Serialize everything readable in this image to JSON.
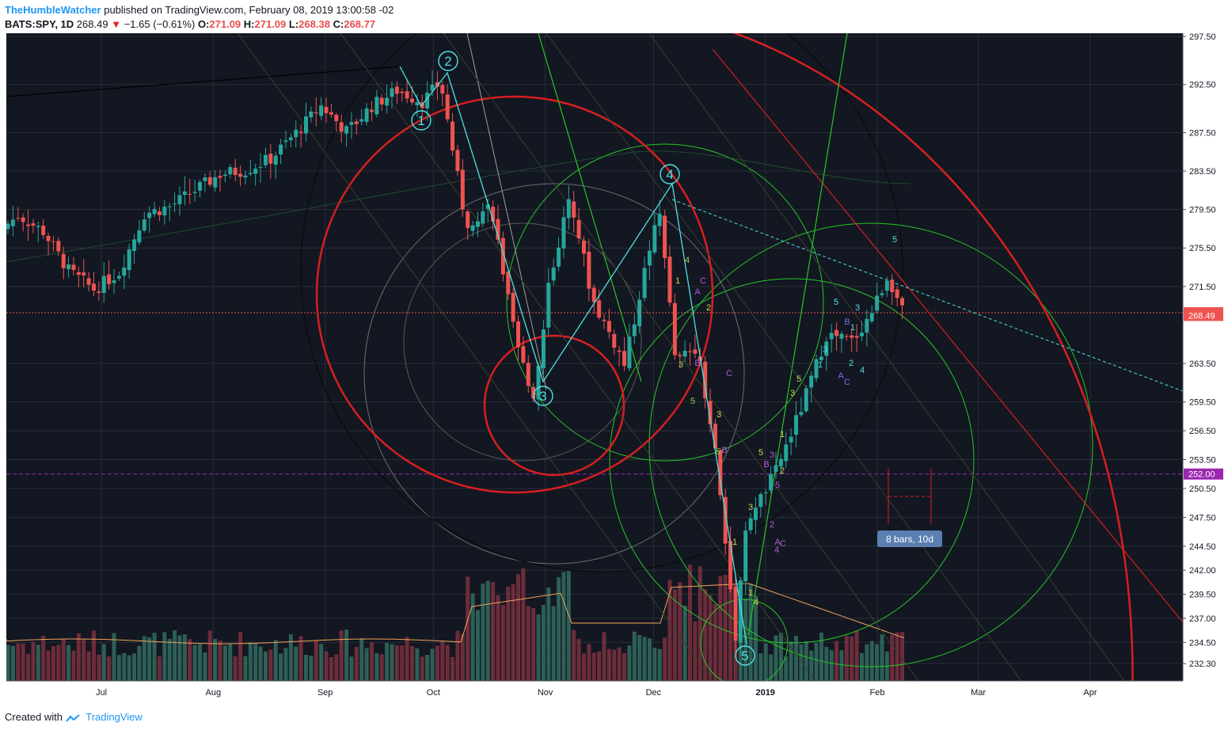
{
  "header": {
    "author": "TheHumbleWatcher",
    "published_text": "published on TradingView.com, February 08, 2019 13:00:58 -02",
    "symbol": "BATS:SPY, 1D",
    "last": "268.49",
    "change": "−1.65 (−0.61%)",
    "o_label": "O:",
    "o_value": "271.09",
    "h_label": "H:",
    "h_value": "271.09",
    "l_label": "L:",
    "l_value": "268.38",
    "c_label": "C:",
    "c_value": "268.77"
  },
  "footer": {
    "created_with": "Created with",
    "brand": "TradingView"
  },
  "colors": {
    "background": "#131722",
    "up": "#26a69a",
    "down": "#ef5350",
    "fib_red": "#d61f1f",
    "fib_green": "#27c427",
    "wave_cyan": "#4ee0e0",
    "support_purple": "#9c27b0",
    "vol_up": "#2d5f56",
    "vol_down": "#6e2c3a"
  },
  "chart_data": {
    "type": "candlestick",
    "symbol": "BATS:SPY",
    "interval": "1D",
    "ylim": [
      231.0,
      298.3
    ],
    "price_ticks": [
      "297.50",
      "292.50",
      "287.50",
      "283.50",
      "279.50",
      "275.50",
      "271.50",
      "268.77",
      "268.49",
      "263.50",
      "259.50",
      "256.50",
      "253.50",
      "252.00",
      "250.50",
      "247.50",
      "244.50",
      "242.00",
      "239.50",
      "237.00",
      "234.50",
      "232.30"
    ],
    "time_ticks": [
      "Jul",
      "Aug",
      "Sep",
      "Oct",
      "Nov",
      "Dec",
      "2019",
      "Feb",
      "Mar",
      "Apr"
    ],
    "price_labels": [
      {
        "text": "268.77",
        "price": 268.77,
        "color": "#ef5350"
      },
      {
        "text": "268.49",
        "price": 268.49,
        "color": "#ef5350"
      },
      {
        "text": "252.00",
        "price": 252.0,
        "color": "#9c27b0"
      }
    ],
    "horizontal_lines": [
      {
        "price": 268.77,
        "color": "#ef5350",
        "style": "dotted"
      },
      {
        "price": 252.0,
        "color": "#9c27b0",
        "style": "dashed"
      }
    ],
    "close_path": [
      [
        "Jun 1",
        276.8
      ],
      [
        "Jun 8",
        278.9
      ],
      [
        "Jun 15",
        277.2
      ],
      [
        "Jun 22",
        273.1
      ],
      [
        "Jun 29",
        271.2
      ],
      [
        "Jul 6",
        273.0
      ],
      [
        "Jul 13",
        279.1
      ],
      [
        "Jul 20",
        279.8
      ],
      [
        "Jul 27",
        281.5
      ],
      [
        "Aug 3",
        283.2
      ],
      [
        "Aug 10",
        283.6
      ],
      [
        "Aug 17",
        284.8
      ],
      [
        "Aug 24",
        287.5
      ],
      [
        "Aug 31",
        290.3
      ],
      [
        "Sep 7",
        287.6
      ],
      [
        "Sep 14",
        290.3
      ],
      [
        "Sep 21",
        291.9
      ],
      [
        "Sep 28",
        290.7
      ],
      [
        "Oct 3",
        292.8
      ],
      [
        "Oct 10",
        278.0
      ],
      [
        "Oct 17",
        280.0
      ],
      [
        "Oct 24",
        265.3
      ],
      [
        "Oct 29",
        259.9
      ],
      [
        "Nov 2",
        272.0
      ],
      [
        "Nov 8",
        281.0
      ],
      [
        "Nov 14",
        270.2
      ],
      [
        "Nov 21",
        265.0
      ],
      [
        "Nov 23",
        263.3
      ],
      [
        "Nov 30",
        275.7
      ],
      [
        "Dec 3",
        279.3
      ],
      [
        "Dec 7",
        263.6
      ],
      [
        "Dec 13",
        265.3
      ],
      [
        "Dec 18",
        254.8
      ],
      [
        "Dec 24",
        234.3
      ],
      [
        "Dec 26",
        246.2
      ],
      [
        "Jan 4",
        252.4
      ],
      [
        "Jan 11",
        258.9
      ],
      [
        "Jan 18",
        266.5
      ],
      [
        "Jan 25",
        265.8
      ],
      [
        "Jan 30",
        268.5
      ],
      [
        "Feb 4",
        272.7
      ],
      [
        "Feb 8",
        268.77
      ]
    ],
    "elliott_wave_labels": [
      "1",
      "2",
      "3",
      "4",
      "5"
    ],
    "sub_wave_labels": [
      "1",
      "2",
      "3",
      "4",
      "5",
      "A",
      "B",
      "C"
    ],
    "annotation": "8 bars, 10d"
  }
}
